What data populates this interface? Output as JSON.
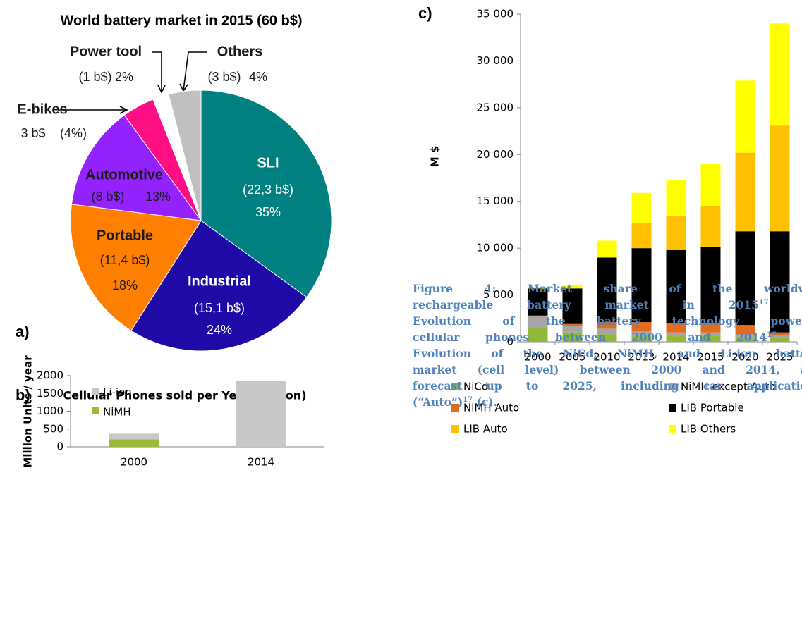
{
  "panel_labels": [
    "a)",
    "b)",
    "c)"
  ],
  "chart_data": [
    {
      "type": "pie",
      "title": "World battery market in 2015 (60 b$)",
      "categories": [
        "SLI",
        "Industrial",
        "Portable",
        "Automotive",
        "E-bikes",
        "Power tool",
        "Others"
      ],
      "amounts": [
        "(22,3 b$)",
        "(15,1 b$)",
        "(11,4 b$)",
        "(8 b$)",
        "3 b$",
        "(1 b$)",
        "(3 b$)"
      ],
      "values": [
        35,
        24,
        18,
        13,
        4,
        2,
        4
      ],
      "value_labels": [
        "35%",
        "24%",
        "18%",
        "13%",
        "(4%)",
        "2%",
        "4%"
      ],
      "colors": [
        "#008080",
        "#1f0aa8",
        "#ff8000",
        "#9322ff",
        "#ff0f83",
        "#ffffff",
        "#c0c0c0"
      ]
    },
    {
      "type": "bar",
      "stacked": true,
      "title": "Cellular Phones sold per Year (Million)",
      "ylabel": "Million Units / year",
      "categories": [
        "2000",
        "2014"
      ],
      "series": [
        {
          "name": "NiMH",
          "color": "#9bbb3b",
          "values": [
            210,
            0
          ]
        },
        {
          "name": "Li-ion",
          "color": "#c8c8c8",
          "values": [
            160,
            1850
          ]
        }
      ],
      "ylim": [
        0,
        2000
      ],
      "yticks": [
        0,
        500,
        1000,
        1500,
        2000
      ],
      "legend": "upper left"
    },
    {
      "type": "bar",
      "stacked": true,
      "ylabel": "M $",
      "categories": [
        "2000",
        "2005",
        "2010",
        "2013",
        "2014",
        "2015",
        "2020",
        "2025"
      ],
      "series": [
        {
          "name": "NiCd",
          "color": "#92b83a",
          "values": [
            1500,
            1000,
            800,
            600,
            600,
            600,
            400,
            400
          ]
        },
        {
          "name": "NiMH except Auto",
          "color": "#a6a6a6",
          "values": [
            1200,
            700,
            600,
            500,
            400,
            400,
            400,
            300
          ]
        },
        {
          "name": "NiMH Auto",
          "color": "#e26b1e",
          "values": [
            100,
            200,
            700,
            1000,
            1000,
            1000,
            1000,
            300
          ]
        },
        {
          "name": "LIB Portable",
          "color": "#000000",
          "values": [
            2900,
            3800,
            6900,
            7900,
            7800,
            8100,
            10000,
            10800
          ]
        },
        {
          "name": "LIB Auto",
          "color": "#ffc000",
          "values": [
            0,
            0,
            0,
            2700,
            3600,
            4400,
            8400,
            11300
          ]
        },
        {
          "name": "LIB Others",
          "color": "#ffff00",
          "values": [
            150,
            400,
            1800,
            3200,
            3900,
            4500,
            7700,
            10900
          ]
        }
      ],
      "ylim": [
        0,
        35000
      ],
      "yticks": [
        0,
        {
          "value": 5000,
          "label": "5 000"
        },
        {
          "value": 10000,
          "label": "10 000"
        },
        {
          "value": 15000,
          "label": "15 000"
        },
        {
          "value": 20000,
          "label": "20 000"
        },
        {
          "value": 25000,
          "label": "25 000"
        },
        {
          "value": 30000,
          "label": "30 000"
        },
        {
          "value": 35000,
          "label": "35 000"
        }
      ],
      "legend": "bottom"
    }
  ],
  "caption": [
    [
      {
        "text": "Figure 4: Market share of the worldw"
      }
    ],
    [
      {
        "text": "rechargeable battery market in 2015"
      },
      {
        "sup": "17"
      },
      {
        "text": " ("
      }
    ],
    [
      {
        "text": "Evolution of the battery technology power"
      }
    ],
    [
      {
        "text": "cellular phones between 2000 and 2014"
      },
      {
        "sup": "17"
      },
      {
        "text": " ("
      }
    ],
    [
      {
        "text": "Evolution of the NiCd, NiMH, and Li-ion batte"
      }
    ],
    [
      {
        "text": "market (cell level) between 2000 and 2014, a"
      }
    ],
    [
      {
        "text": "forecast up to 2025, including car applicatio"
      }
    ],
    [
      {
        "text": "(“Auto”)"
      },
      {
        "sup": "17"
      },
      {
        "text": " (c)."
      }
    ]
  ]
}
